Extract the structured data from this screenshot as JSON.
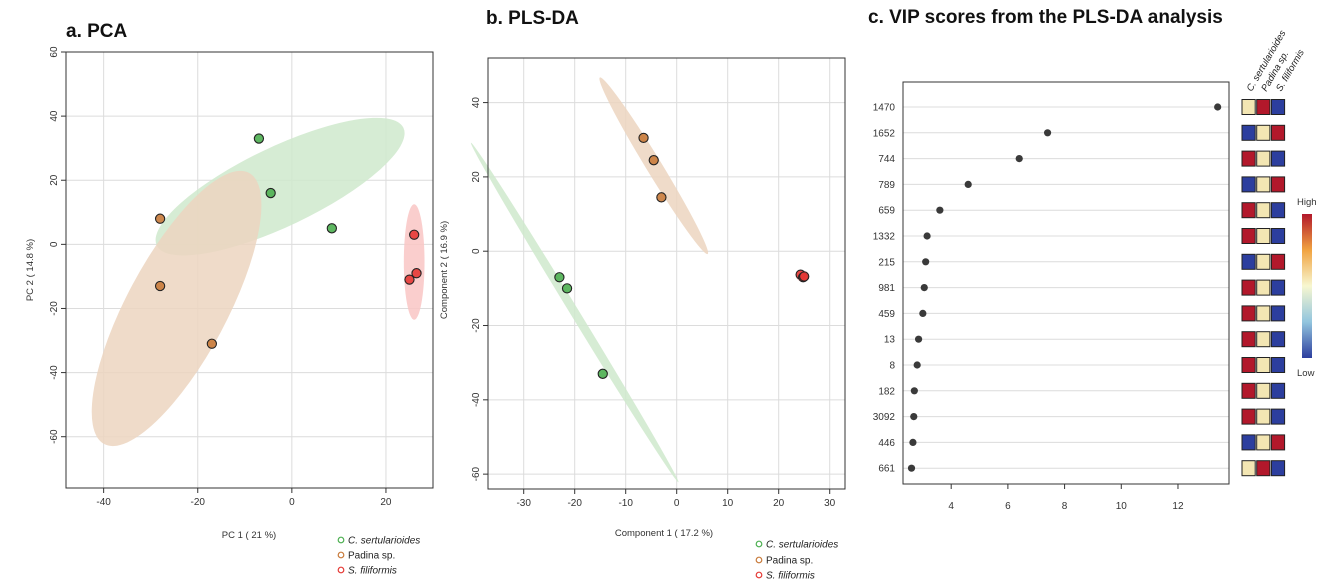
{
  "colors": {
    "C. sertularioides": "#4caf50",
    "Padina sp.": "#c87a3a",
    "S. filiformis": "#e53935",
    "ellipse_green": "#cfe9cc",
    "ellipse_brown": "#ecd5c0",
    "ellipse_red": "#f9c6c4",
    "heat_high": "#b2182b",
    "heat_mid": "#f3e6b3",
    "heat_low": "#2c3e9e"
  },
  "chart_data": [
    {
      "type": "scatter",
      "title": "a. PCA",
      "xlabel": "PC 1 ( 21 %)",
      "ylabel": "PC 2 ( 14.8 %)",
      "xlim": [
        -48,
        30
      ],
      "ylim": [
        -76,
        60
      ],
      "xticks": [
        -40,
        -20,
        0,
        20
      ],
      "yticks": [
        -60,
        -40,
        -20,
        0,
        20,
        40,
        60
      ],
      "grid": true,
      "legend": {
        "position": "bottom-right",
        "entries": [
          "C. sertularioides",
          "Padina sp.",
          "S. filiformis"
        ]
      },
      "series": [
        {
          "name": "C. sertularioides",
          "points": [
            [
              -7,
              33
            ],
            [
              -4.5,
              16
            ],
            [
              8.5,
              5
            ]
          ]
        },
        {
          "name": "Padina sp.",
          "points": [
            [
              -28,
              8
            ],
            [
              -28,
              -13
            ],
            [
              -17,
              -31
            ]
          ]
        },
        {
          "name": "S. filiformis",
          "points": [
            [
              26,
              3
            ],
            [
              25,
              -11
            ],
            [
              26.5,
              -9
            ]
          ]
        }
      ],
      "ellipses": [
        {
          "series": "C. sertularioides",
          "center": [
            -2.5,
            18
          ],
          "rx": 32,
          "ry": 10.5,
          "angle": 35
        },
        {
          "series": "Padina sp.",
          "center": [
            -24.5,
            -20
          ],
          "rx": 45,
          "ry": 11,
          "angle": 70
        },
        {
          "series": "S. filiformis",
          "center": [
            26,
            -5.5
          ],
          "rx": 18,
          "ry": 2.2,
          "angle": 90
        }
      ]
    },
    {
      "type": "scatter",
      "title": "b. PLS-DA",
      "xlabel": "Component 1 ( 17.2 %)",
      "ylabel": "Component 2 ( 16.9 %)",
      "xlim": [
        -37,
        33
      ],
      "ylim": [
        -64,
        52
      ],
      "xticks": [
        -30,
        -20,
        -10,
        0,
        10,
        20,
        30
      ],
      "yticks": [
        -60,
        -40,
        -20,
        0,
        20,
        40
      ],
      "grid": true,
      "legend": {
        "position": "bottom-right",
        "entries": [
          "C. sertularioides",
          "Padina sp.",
          "S. filiformis"
        ]
      },
      "series": [
        {
          "name": "C. sertularioides",
          "points": [
            [
              -23,
              -7
            ],
            [
              -21.5,
              -10
            ],
            [
              -14.5,
              -33
            ]
          ]
        },
        {
          "name": "Padina sp.",
          "points": [
            [
              -6.5,
              30.5
            ],
            [
              -4.5,
              24.5
            ],
            [
              -3,
              14.5
            ]
          ]
        },
        {
          "name": "S. filiformis",
          "points": [
            [
              24.3,
              -6.3
            ],
            [
              24.8,
              -7
            ],
            [
              25,
              -6.8
            ]
          ]
        }
      ],
      "ellipses": [
        {
          "series": "C. sertularioides",
          "center": [
            -20,
            -16.5
          ],
          "rx": 50,
          "ry": 0.9,
          "angle": -66
        },
        {
          "series": "Padina sp.",
          "center": [
            -4.5,
            23
          ],
          "rx": 26,
          "ry": 1.6,
          "angle": -66
        },
        {
          "series": "S. filiformis",
          "center": [
            24.7,
            -6.7
          ],
          "rx": 1.3,
          "ry": 1.5,
          "angle": 0
        }
      ]
    },
    {
      "type": "scatter",
      "title": "c. VIP scores from the PLS-DA analysis",
      "xlabel": "",
      "ylabel": "",
      "xlim": [
        2.3,
        13.8
      ],
      "xticks": [
        4,
        6,
        8,
        10,
        12
      ],
      "grid": true,
      "features": [
        "1470",
        "1652",
        "744",
        "789",
        "659",
        "1332",
        "215",
        "981",
        "459",
        "13",
        "8",
        "182",
        "3092",
        "446",
        "661"
      ],
      "vip": [
        13.4,
        7.4,
        6.4,
        4.6,
        3.6,
        3.15,
        3.1,
        3.05,
        3.0,
        2.85,
        2.8,
        2.7,
        2.68,
        2.65,
        2.6
      ],
      "heatmap": {
        "columns": [
          "C. sertularioides",
          "Padina sp.",
          "S. filiformis"
        ],
        "cells": [
          [
            "mid",
            "high",
            "low"
          ],
          [
            "low",
            "mid",
            "high"
          ],
          [
            "high",
            "mid",
            "low"
          ],
          [
            "low",
            "mid",
            "high"
          ],
          [
            "high",
            "mid",
            "low"
          ],
          [
            "high",
            "mid",
            "low"
          ],
          [
            "low",
            "mid",
            "high"
          ],
          [
            "high",
            "mid",
            "low"
          ],
          [
            "high",
            "mid",
            "low"
          ],
          [
            "high",
            "mid",
            "low"
          ],
          [
            "high",
            "mid",
            "low"
          ],
          [
            "high",
            "mid",
            "low"
          ],
          [
            "high",
            "mid",
            "low"
          ],
          [
            "low",
            "mid",
            "high"
          ],
          [
            "mid",
            "high",
            "low"
          ]
        ]
      },
      "colorbar": {
        "high_label": "High",
        "low_label": "Low"
      }
    }
  ]
}
